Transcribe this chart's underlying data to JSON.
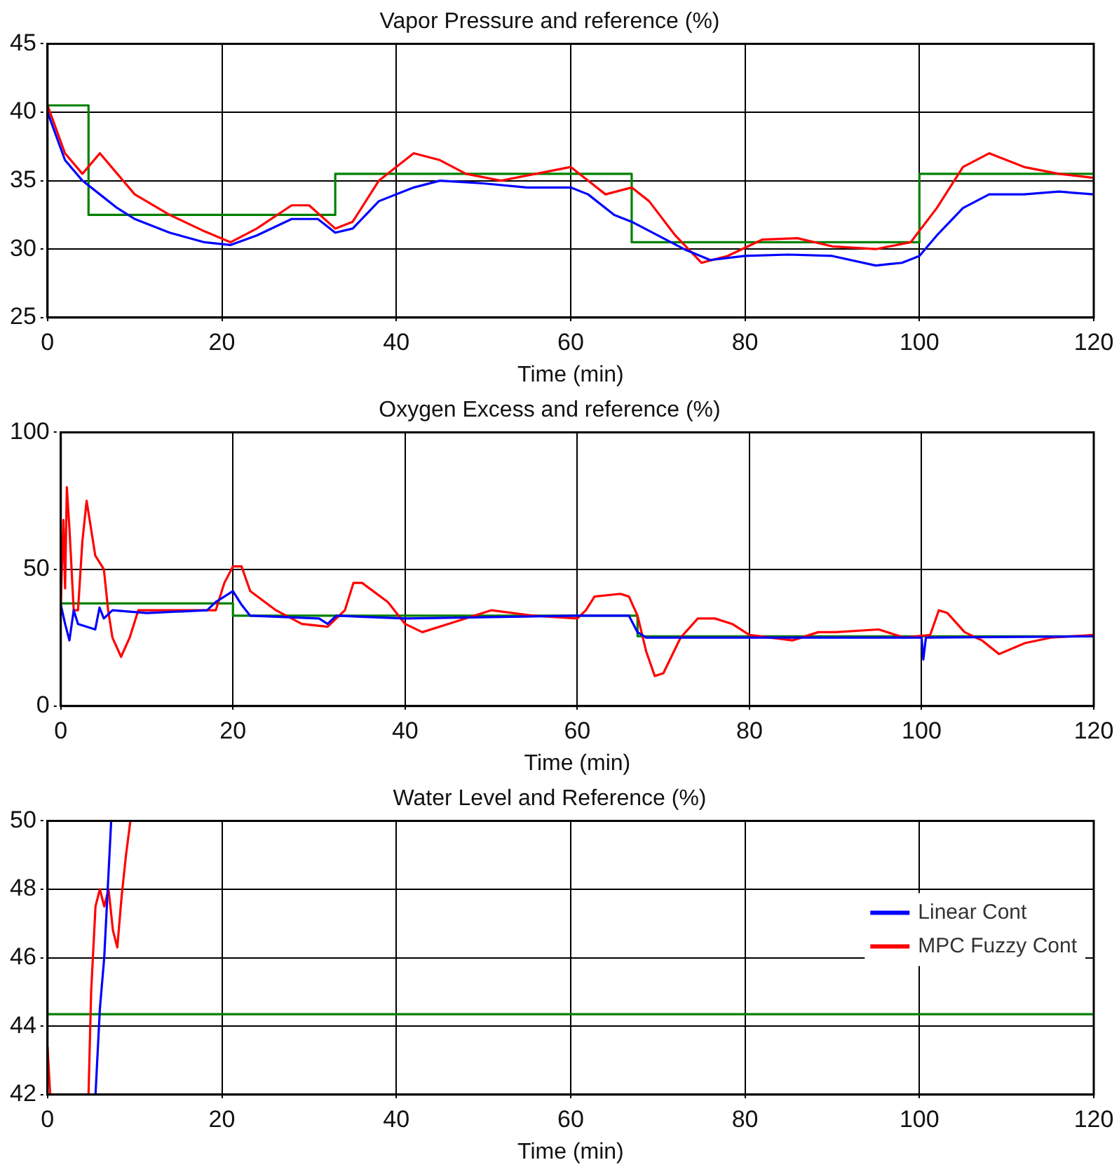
{
  "chart_data": [
    {
      "type": "line",
      "title": "Vapor Pressure and reference (%)",
      "xlabel": "Time (min)",
      "xlim": [
        0,
        120
      ],
      "xticks": [
        0,
        20,
        40,
        60,
        80,
        100,
        120
      ],
      "ylim": [
        25,
        45
      ],
      "yticks": [
        25,
        30,
        35,
        40,
        45
      ],
      "grid": true,
      "series": [
        {
          "color": "#0000ff",
          "x": [
            0,
            2,
            4,
            6,
            8,
            10,
            14,
            18,
            21,
            24,
            28,
            31,
            33,
            35,
            38,
            42,
            45,
            50,
            55,
            60,
            62,
            65,
            67,
            70,
            73,
            76,
            80,
            85,
            90,
            95,
            98,
            100,
            102,
            105,
            108,
            112,
            116,
            120
          ],
          "values": [
            40,
            36.5,
            35,
            34,
            33,
            32.2,
            31.2,
            30.5,
            30.3,
            31,
            32.2,
            32.2,
            31.2,
            31.5,
            33.5,
            34.5,
            35,
            34.8,
            34.5,
            34.5,
            34,
            32.5,
            32,
            31,
            30,
            29.2,
            29.5,
            29.6,
            29.5,
            28.8,
            29,
            29.5,
            31,
            33,
            34,
            34,
            34.2,
            34
          ]
        },
        {
          "color": "#ff0000",
          "x": [
            0,
            2,
            4,
            6,
            8,
            10,
            14,
            18,
            21,
            24,
            28,
            30,
            33,
            35,
            38,
            42,
            45,
            48,
            52,
            56,
            60,
            62,
            64,
            67,
            69,
            72,
            75,
            78,
            82,
            86,
            90,
            95,
            99,
            102,
            105,
            108,
            112,
            116,
            120
          ],
          "values": [
            40.5,
            37,
            35.5,
            37,
            35.5,
            34,
            32.5,
            31.3,
            30.5,
            31.5,
            33.2,
            33.2,
            31.5,
            32,
            35,
            37,
            36.5,
            35.5,
            35,
            35.5,
            36,
            35,
            34,
            34.5,
            33.5,
            31,
            29,
            29.5,
            30.7,
            30.8,
            30.2,
            30,
            30.5,
            33,
            36,
            37,
            36,
            35.5,
            35.2
          ]
        },
        {
          "color": "#008000",
          "x": [
            0,
            4.7,
            4.7,
            33,
            33,
            67,
            67,
            100,
            100,
            120
          ],
          "values": [
            40.5,
            40.5,
            32.5,
            32.5,
            35.5,
            35.5,
            30.5,
            30.5,
            35.5,
            35.5
          ]
        }
      ]
    },
    {
      "type": "line",
      "title": "Oxygen Excess and reference (%)",
      "xlabel": "Time (min)",
      "xlim": [
        0,
        120
      ],
      "xticks": [
        0,
        20,
        40,
        60,
        80,
        100,
        120
      ],
      "ylim": [
        0,
        100
      ],
      "yticks": [
        0,
        50,
        100
      ],
      "grid": true,
      "series": [
        {
          "color": "#0000ff",
          "x": [
            0,
            0.5,
            1,
            1.5,
            2,
            4,
            4.5,
            5,
            6,
            10,
            17,
            18,
            20,
            21,
            22,
            30,
            31,
            32,
            40,
            60,
            66,
            67,
            68,
            80,
            100,
            100.2,
            100.5,
            120
          ],
          "values": [
            37,
            30,
            24,
            35,
            30,
            28,
            36,
            32,
            35,
            34,
            35,
            38,
            42,
            37,
            33,
            32,
            30,
            33,
            32,
            33,
            33,
            27,
            25,
            25,
            25,
            17,
            25,
            25.5
          ]
        },
        {
          "color": "#ff0000",
          "x": [
            0,
            0.3,
            0.5,
            0.7,
            1,
            1.5,
            2,
            2.5,
            3,
            4,
            5,
            5.5,
            6,
            7,
            8,
            9,
            18,
            19,
            20,
            21,
            22,
            25,
            28,
            31,
            33,
            34,
            35,
            38,
            40,
            42,
            45,
            50,
            55,
            60,
            61,
            62,
            65,
            66,
            67,
            68,
            69,
            70,
            72,
            74,
            76,
            78,
            80,
            85,
            88,
            90,
            95,
            98,
            101,
            102,
            103,
            105,
            107,
            109,
            112,
            115,
            120
          ],
          "values": [
            37,
            68,
            43,
            80,
            65,
            35,
            35,
            60,
            75,
            55,
            50,
            35,
            25,
            18,
            25,
            35,
            35,
            45,
            51,
            51,
            42,
            35,
            30,
            29,
            35,
            45,
            45,
            38,
            30,
            27,
            30,
            35,
            33,
            32,
            35,
            40,
            41,
            40,
            33,
            20,
            11,
            12,
            25,
            32,
            32,
            30,
            26,
            24,
            27,
            27,
            28,
            25,
            26,
            35,
            34,
            27,
            24,
            19,
            23,
            25,
            26
          ]
        },
        {
          "color": "#008000",
          "x": [
            0,
            20,
            20,
            67,
            67,
            120
          ],
          "values": [
            37.5,
            37.5,
            33,
            33,
            25.5,
            25.5
          ]
        }
      ]
    },
    {
      "type": "line",
      "title": "Water Level and Reference (%)",
      "xlabel": "Time (min)",
      "xlim": [
        0,
        120
      ],
      "xticks": [
        0,
        20,
        40,
        60,
        80,
        100,
        120
      ],
      "ylim": [
        42,
        50
      ],
      "yticks": [
        42,
        44,
        46,
        48,
        50
      ],
      "grid": true,
      "legend": "right",
      "series": [
        {
          "name": "Linear Cont",
          "color": "#0000ff",
          "x": [
            5.5,
            6,
            6.5,
            7,
            7.3
          ],
          "values": [
            42,
            44.5,
            46,
            48.5,
            50
          ]
        },
        {
          "name": "MPC Fuzzy Cont",
          "color": "#ff0000",
          "x": [
            0,
            0.3,
            2,
            4.7,
            5,
            5.5,
            6,
            6.5,
            7,
            7.5,
            8,
            8.5,
            9,
            9.5
          ],
          "values": [
            43.4,
            42,
            null,
            42,
            45,
            47.5,
            48,
            47.5,
            48,
            46.8,
            46.3,
            47.8,
            49,
            50
          ]
        },
        {
          "color": "#008000",
          "x": [
            0,
            120
          ],
          "values": [
            44.35,
            44.35
          ]
        }
      ]
    }
  ]
}
